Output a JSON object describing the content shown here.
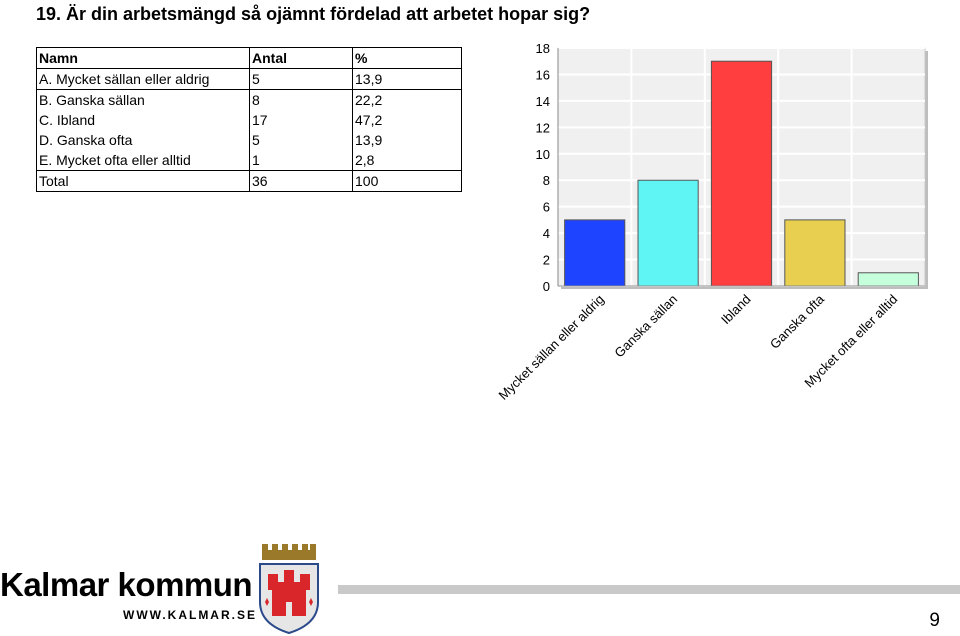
{
  "title": "19. Är din arbetsmängd så ojämnt fördelad att arbetet hopar sig?",
  "table": {
    "headers": [
      "Namn",
      "Antal",
      "%"
    ],
    "rows": [
      [
        "A. Mycket sällan eller aldrig",
        "5",
        "13,9"
      ],
      [
        "B. Ganska sällan",
        "8",
        "22,2"
      ],
      [
        "C. Ibland",
        "17",
        "47,2"
      ],
      [
        "D. Ganska ofta",
        "5",
        "13,9"
      ],
      [
        "E. Mycket ofta eller alltid",
        "1",
        "2,8"
      ]
    ],
    "total": [
      "Total",
      "36",
      "100"
    ]
  },
  "chart_data": {
    "type": "bar",
    "categories": [
      "Mycket sällan eller aldrig",
      "Ganska sällan",
      "Ibland",
      "Ganska ofta",
      "Mycket ofta eller alltid"
    ],
    "values": [
      5,
      8,
      17,
      5,
      1
    ],
    "colors": [
      "#1f44ff",
      "#5ff5f5",
      "#ff3f3f",
      "#e8cf4f",
      "#c6ffdc"
    ],
    "ylim": [
      0,
      18
    ],
    "yticks": [
      0,
      2,
      4,
      6,
      8,
      10,
      12,
      14,
      16,
      18
    ],
    "grid": true
  },
  "footer": {
    "brand": "Kalmar kommun",
    "url": "WWW.KALMAR.SE",
    "page_number": "9"
  }
}
